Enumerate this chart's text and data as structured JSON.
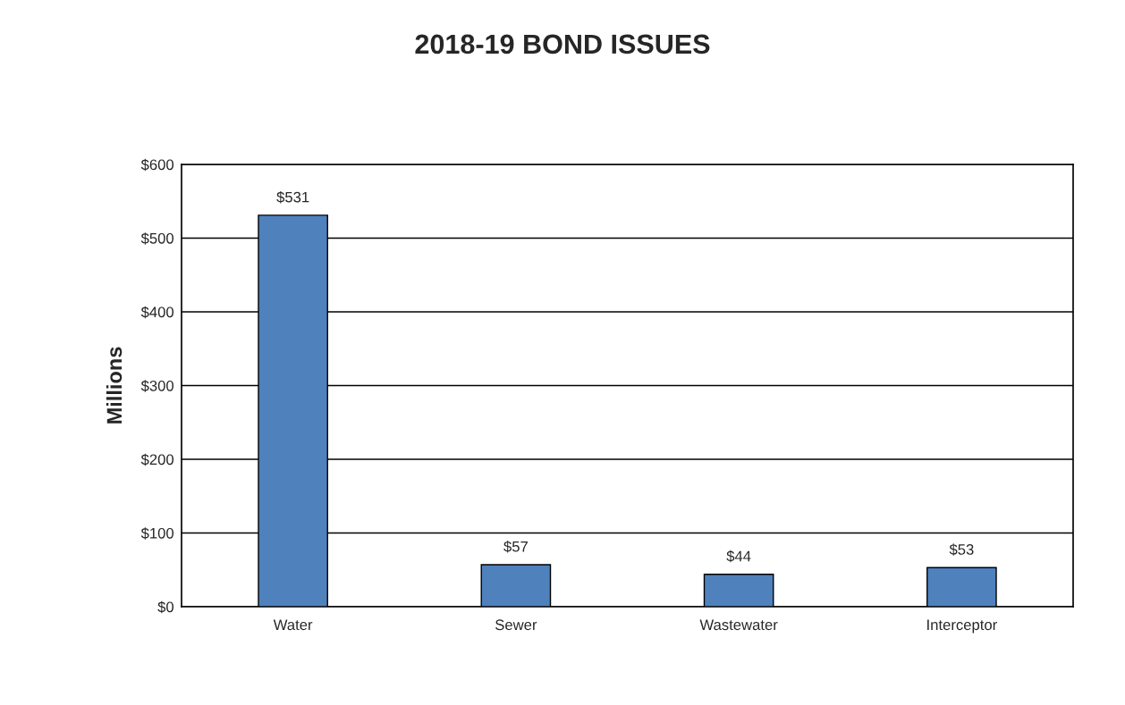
{
  "chart_data": {
    "type": "bar",
    "title": "2018-19 BOND ISSUES",
    "ylabel": "Millions",
    "categories": [
      "Water",
      "Sewer",
      "Wastewater",
      "Interceptor"
    ],
    "values": [
      531,
      57,
      44,
      53
    ],
    "value_labels": [
      "$531",
      "$57",
      "$44",
      "$53"
    ],
    "color": "#4f81bd",
    "ylim": [
      0,
      600
    ],
    "yticks": [
      {
        "value": 0,
        "label": "$0"
      },
      {
        "value": 100,
        "label": "$100"
      },
      {
        "value": 200,
        "label": "$200"
      },
      {
        "value": 300,
        "label": "$300"
      },
      {
        "value": 400,
        "label": "$400"
      },
      {
        "value": 500,
        "label": "$500"
      },
      {
        "value": 600,
        "label": "$600"
      }
    ],
    "grid": "y",
    "legend": false
  }
}
